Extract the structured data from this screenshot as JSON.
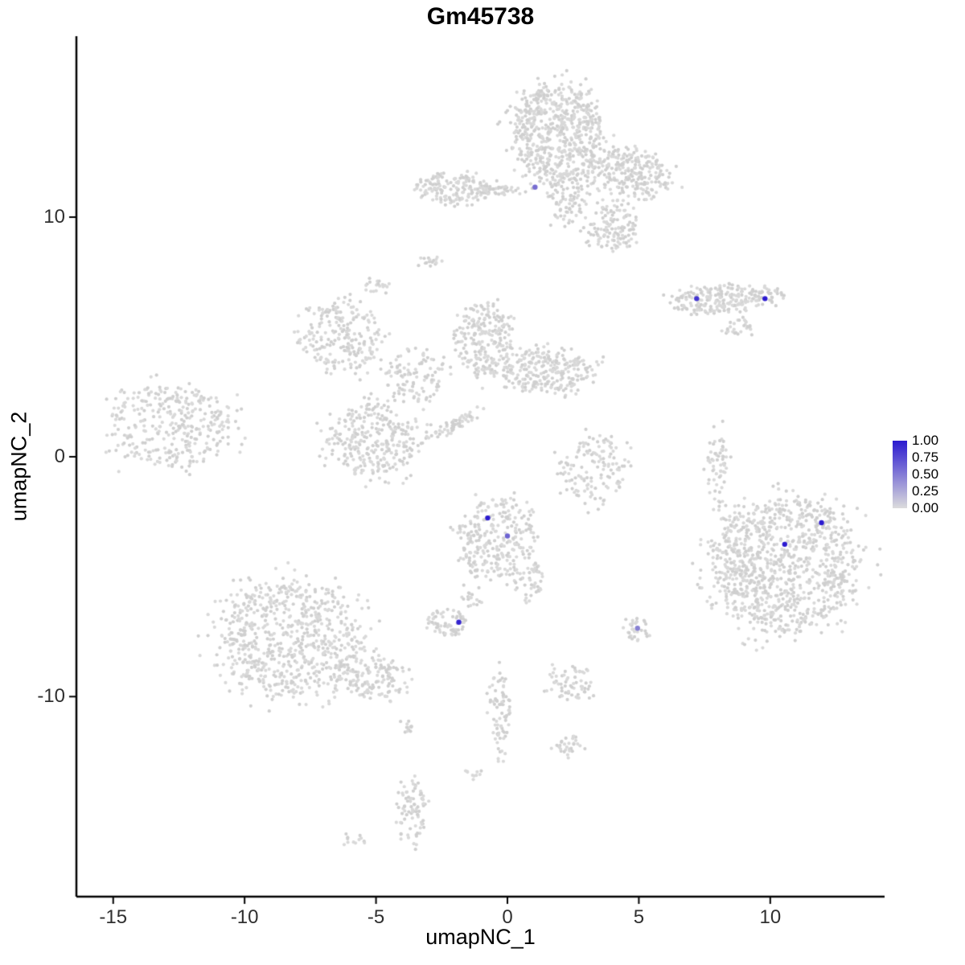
{
  "title": "Gm45738",
  "axes": {
    "x": {
      "label": "umapNC_1",
      "ticks": [
        -15,
        -10,
        -5,
        0,
        5,
        10
      ]
    },
    "y": {
      "label": "umapNC_2",
      "ticks": [
        -10,
        0,
        10
      ]
    }
  },
  "legend": {
    "labels": [
      "1.00",
      "0.75",
      "0.50",
      "0.25",
      "0.00"
    ],
    "color_high": "#2B1AD0",
    "color_low": "#DCDCDC"
  },
  "colors": {
    "point_gray_a": "#D9D9D9",
    "point_gray_b": "#CFCFCF",
    "axis": "#000000",
    "highlight_high": "#2B1AD0",
    "highlight_low": "#D3D3D3"
  },
  "chart_data": {
    "type": "scatter",
    "title": "Gm45738",
    "xlabel": "umapNC_1",
    "ylabel": "umapNC_2",
    "xlim": [
      -16.4,
      14.35
    ],
    "ylim": [
      -18.35,
      17.55
    ],
    "legend_position": "right",
    "grid": false,
    "clusters": [
      {
        "cx": 1.9,
        "cy": 13.5,
        "rx": 1.7,
        "ry": 2.0,
        "n": 650
      },
      {
        "cx": 4.6,
        "cy": 11.8,
        "rx": 1.6,
        "ry": 1.0,
        "n": 260,
        "rot": -15
      },
      {
        "cx": 4.0,
        "cy": 9.5,
        "rx": 0.9,
        "ry": 1.0,
        "n": 130
      },
      {
        "cx": 2.3,
        "cy": 10.8,
        "rx": 0.7,
        "ry": 1.1,
        "n": 90
      },
      {
        "cx": -2.1,
        "cy": 11.2,
        "rx": 1.5,
        "ry": 0.6,
        "n": 160
      },
      {
        "cx": -0.4,
        "cy": 11.1,
        "rx": 1.1,
        "ry": 0.18,
        "n": 45
      },
      {
        "cx": -3.0,
        "cy": 8.1,
        "rx": 0.4,
        "ry": 0.3,
        "n": 16
      },
      {
        "cx": 8.3,
        "cy": 6.6,
        "rx": 2.0,
        "ry": 0.55,
        "n": 230,
        "rot": 5
      },
      {
        "cx": 8.7,
        "cy": 5.4,
        "rx": 0.6,
        "ry": 0.35,
        "n": 28
      },
      {
        "cx": -6.2,
        "cy": 5.0,
        "rx": 1.5,
        "ry": 1.4,
        "n": 230
      },
      {
        "cx": -5.0,
        "cy": 7.1,
        "rx": 0.45,
        "ry": 0.3,
        "n": 20
      },
      {
        "cx": -3.5,
        "cy": 3.4,
        "rx": 1.1,
        "ry": 1.1,
        "n": 110,
        "rot": 40
      },
      {
        "cx": -0.9,
        "cy": 4.9,
        "rx": 1.1,
        "ry": 1.5,
        "n": 240
      },
      {
        "cx": 1.5,
        "cy": 3.6,
        "rx": 1.7,
        "ry": 0.9,
        "n": 260
      },
      {
        "cx": -5.1,
        "cy": 0.7,
        "rx": 1.7,
        "ry": 1.5,
        "n": 300
      },
      {
        "cx": -2.1,
        "cy": 1.3,
        "rx": 1.1,
        "ry": 0.22,
        "n": 60,
        "rot": 30
      },
      {
        "cx": -12.8,
        "cy": 1.3,
        "rx": 2.3,
        "ry": 1.7,
        "n": 340
      },
      {
        "cx": 3.3,
        "cy": -0.5,
        "rx": 1.3,
        "ry": 1.4,
        "n": 140
      },
      {
        "cx": 8.0,
        "cy": -0.3,
        "rx": 0.4,
        "ry": 1.4,
        "n": 60
      },
      {
        "cx": -0.4,
        "cy": -3.4,
        "rx": 1.4,
        "ry": 1.6,
        "n": 280
      },
      {
        "cx": 0.8,
        "cy": -5.2,
        "rx": 0.6,
        "ry": 0.9,
        "n": 55
      },
      {
        "cx": -1.4,
        "cy": -5.9,
        "rx": 0.35,
        "ry": 0.5,
        "n": 18
      },
      {
        "cx": -2.3,
        "cy": -6.9,
        "rx": 0.8,
        "ry": 0.55,
        "n": 65
      },
      {
        "cx": 5.0,
        "cy": -7.2,
        "rx": 0.45,
        "ry": 0.55,
        "n": 32
      },
      {
        "cx": 10.6,
        "cy": -4.5,
        "rx": 2.7,
        "ry": 2.8,
        "n": 950
      },
      {
        "cx": 8.5,
        "cy": -4.2,
        "rx": 0.9,
        "ry": 1.9,
        "n": 90
      },
      {
        "cx": -8.2,
        "cy": -7.6,
        "rx": 2.7,
        "ry": 2.4,
        "n": 720
      },
      {
        "cx": -5.0,
        "cy": -9.2,
        "rx": 1.3,
        "ry": 0.8,
        "n": 130
      },
      {
        "cx": 2.3,
        "cy": -9.4,
        "rx": 0.9,
        "ry": 0.7,
        "n": 65
      },
      {
        "cx": -0.3,
        "cy": -10.7,
        "rx": 0.4,
        "ry": 1.7,
        "n": 80
      },
      {
        "cx": 2.4,
        "cy": -12.1,
        "rx": 0.55,
        "ry": 0.45,
        "n": 32
      },
      {
        "cx": -3.8,
        "cy": -11.2,
        "rx": 0.35,
        "ry": 0.35,
        "n": 12
      },
      {
        "cx": -3.6,
        "cy": -14.7,
        "rx": 0.5,
        "ry": 1.3,
        "n": 85
      },
      {
        "cx": -5.8,
        "cy": -16.0,
        "rx": 0.4,
        "ry": 0.28,
        "n": 12
      },
      {
        "cx": -1.3,
        "cy": -13.2,
        "rx": 0.35,
        "ry": 0.3,
        "n": 10
      }
    ],
    "highlighted_points": [
      {
        "x": 1.05,
        "y": 11.25,
        "value": 0.55
      },
      {
        "x": 7.2,
        "y": 6.6,
        "value": 0.85
      },
      {
        "x": 9.8,
        "y": 6.6,
        "value": 1.0
      },
      {
        "x": -0.75,
        "y": -2.55,
        "value": 1.0
      },
      {
        "x": 0.0,
        "y": -3.3,
        "value": 0.6
      },
      {
        "x": -1.85,
        "y": -6.9,
        "value": 0.95
      },
      {
        "x": 4.95,
        "y": -7.15,
        "value": 0.45
      },
      {
        "x": 10.55,
        "y": -3.65,
        "value": 1.0
      },
      {
        "x": 11.95,
        "y": -2.75,
        "value": 1.0
      }
    ]
  }
}
